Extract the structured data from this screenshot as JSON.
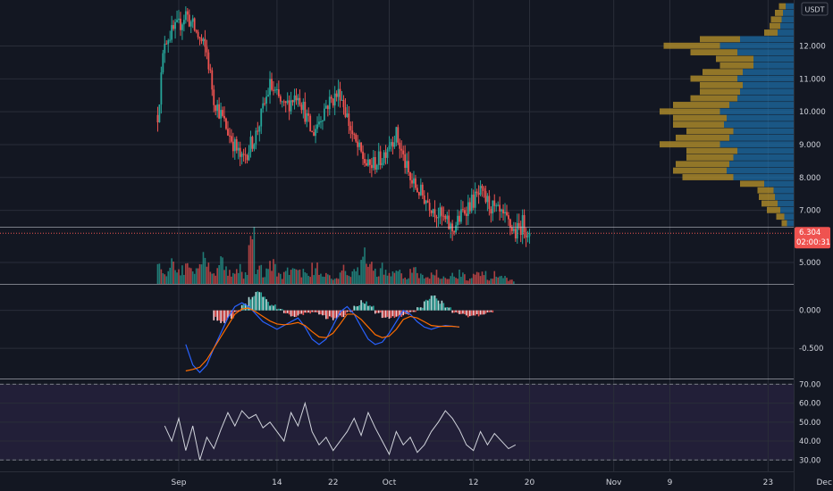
{
  "header": {
    "currency": "USDT"
  },
  "colors": {
    "background": "#131722",
    "grid": "#2a2e39",
    "up": "#26a69a",
    "down": "#ef5350",
    "macd_line": "#2962ff",
    "signal_line": "#ff6d00",
    "rsi_line": "#d1d4dc",
    "rsi_band": "#7e57c2",
    "vp_up": "#1e6ea7",
    "vp_down": "#b38f2a",
    "axis_text": "#d1d4dc"
  },
  "price_badge": {
    "price": "6.304",
    "countdown": "02:00:31"
  },
  "chart_data": [
    {
      "type": "candlestick",
      "panel": "price",
      "ylim": [
        6.5,
        13.4
      ],
      "y_ticks": [
        "7.000",
        "8.000",
        "9.000",
        "10.000",
        "11.000",
        "12.000"
      ],
      "y_tick_values": [
        7,
        8,
        9,
        10,
        11,
        12
      ],
      "x_tick_labels": [
        "Sep",
        "14",
        "22",
        "Oct",
        "12",
        "20",
        "Nov",
        "9",
        "23",
        "Dec"
      ],
      "x_tick_values": [
        0,
        14,
        22,
        30,
        42,
        50,
        62,
        70,
        84,
        92
      ],
      "date_range": [
        "Aug 27",
        "Oct 20"
      ],
      "waypoints": [
        [
          -3,
          9.9
        ],
        [
          -2,
          12.2
        ],
        [
          0,
          12.6
        ],
        [
          1,
          13.0
        ],
        [
          3,
          12.2
        ],
        [
          4,
          11.8
        ],
        [
          5,
          10.4
        ],
        [
          7,
          9.4
        ],
        [
          9,
          8.5
        ],
        [
          11,
          9.3
        ],
        [
          13,
          10.8
        ],
        [
          15,
          10.1
        ],
        [
          17,
          10.6
        ],
        [
          19,
          9.3
        ],
        [
          21,
          10.2
        ],
        [
          23,
          10.6
        ],
        [
          25,
          9.1
        ],
        [
          27,
          8.3
        ],
        [
          29,
          8.6
        ],
        [
          30,
          9.1
        ],
        [
          31,
          9.3
        ],
        [
          32,
          8.6
        ],
        [
          33,
          7.9
        ],
        [
          35,
          7.4
        ],
        [
          37,
          6.9
        ],
        [
          39,
          6.4
        ],
        [
          41,
          7.1
        ],
        [
          43,
          7.5
        ],
        [
          45,
          7.0
        ],
        [
          47,
          6.6
        ],
        [
          48,
          6.3
        ],
        [
          49,
          6.6
        ],
        [
          50,
          6.3
        ]
      ],
      "last_price": 6.304
    },
    {
      "type": "bar",
      "panel": "volume",
      "ylim": [
        4.4,
        6.0
      ],
      "y_ticks": [
        "5.000"
      ],
      "y_tick_values": [
        5.0
      ],
      "values": [
        4.9,
        4.8,
        5.1,
        4.9,
        5.2,
        4.8,
        5.3,
        5.0,
        4.9,
        5.1,
        4.8,
        4.9,
        4.7,
        5.8,
        4.9,
        4.8,
        5.0,
        4.7,
        4.8,
        4.9,
        4.8,
        4.7,
        4.9,
        4.8,
        4.7,
        4.6,
        4.9,
        4.7,
        4.8,
        5.4,
        5.0,
        4.8,
        4.9,
        4.7,
        4.8,
        4.6,
        4.8,
        4.7,
        4.6,
        4.8,
        4.7,
        4.6,
        4.7,
        4.8,
        4.6,
        4.7,
        4.7,
        4.6,
        4.7,
        4.6,
        4.5
      ],
      "x_start": -3
    },
    {
      "type": "bar",
      "panel": "macd-histogram",
      "ylim": [
        -0.9,
        0.35
      ],
      "y_ticks": [
        "0.000",
        "-0.500"
      ],
      "y_tick_values": [
        0.0,
        -0.5
      ],
      "values": [
        -0.12,
        -0.15,
        -0.1,
        -0.02,
        0.08,
        0.18,
        0.22,
        0.16,
        0.08,
        0.02,
        -0.05,
        -0.08,
        -0.06,
        -0.04,
        -0.03,
        -0.06,
        -0.1,
        -0.12,
        -0.08,
        -0.02,
        0.06,
        0.12,
        0.06,
        -0.04,
        -0.09,
        -0.1,
        -0.09,
        -0.06,
        -0.02,
        0.04,
        0.14,
        0.18,
        0.12,
        0.04,
        -0.03,
        -0.06,
        -0.08,
        -0.07,
        -0.05,
        -0.03
      ],
      "x_start": 5
    },
    {
      "type": "line",
      "panel": "macd",
      "ylim": [
        -0.9,
        0.35
      ],
      "x_start": 1,
      "series": [
        {
          "values": [
            -0.45,
            -0.72,
            -0.82,
            -0.72,
            -0.5,
            -0.3,
            -0.1,
            0.05,
            0.1,
            0.05,
            -0.05,
            -0.15,
            -0.2,
            -0.25,
            -0.2,
            -0.15,
            -0.1,
            -0.22,
            -0.38,
            -0.45,
            -0.38,
            -0.2,
            -0.02,
            0.05,
            -0.05,
            -0.22,
            -0.38,
            -0.45,
            -0.42,
            -0.3,
            -0.15,
            0.0,
            -0.05,
            -0.15,
            -0.22,
            -0.25,
            -0.22,
            -0.2,
            -0.21,
            -0.22
          ]
        },
        {
          "values": [
            -0.8,
            -0.78,
            -0.75,
            -0.65,
            -0.5,
            -0.35,
            -0.2,
            -0.05,
            0.02,
            0.03,
            -0.02,
            -0.08,
            -0.14,
            -0.18,
            -0.19,
            -0.18,
            -0.16,
            -0.2,
            -0.28,
            -0.35,
            -0.36,
            -0.3,
            -0.18,
            -0.05,
            -0.05,
            -0.12,
            -0.22,
            -0.32,
            -0.36,
            -0.34,
            -0.25,
            -0.12,
            -0.08,
            -0.1,
            -0.15,
            -0.2,
            -0.21,
            -0.21,
            -0.21,
            -0.22
          ]
        }
      ]
    },
    {
      "type": "line",
      "panel": "rsi",
      "ylim": [
        24,
        73
      ],
      "y_ticks": [
        "30.00",
        "40.00",
        "50.00",
        "60.00",
        "70.00"
      ],
      "y_tick_values": [
        30,
        40,
        50,
        60,
        70
      ],
      "x_start": -2,
      "series": [
        {
          "values": [
            48,
            40,
            52,
            35,
            48,
            30,
            42,
            36,
            46,
            55,
            48,
            56,
            52,
            54,
            47,
            50,
            45,
            40,
            55,
            48,
            60,
            45,
            38,
            42,
            35,
            40,
            45,
            52,
            43,
            55,
            47,
            40,
            33,
            45,
            38,
            42,
            34,
            38,
            45,
            50,
            56,
            52,
            46,
            38,
            35,
            45,
            38,
            44,
            40,
            36,
            38
          ]
        }
      ]
    },
    {
      "type": "bar",
      "panel": "volume-profile",
      "orientation": "horizontal",
      "ylim": [
        6.5,
        13.4
      ],
      "price_levels": [
        6.6,
        6.8,
        7.0,
        7.2,
        7.4,
        7.6,
        7.8,
        8.0,
        8.2,
        8.4,
        8.6,
        8.8,
        9.0,
        9.2,
        9.4,
        9.6,
        9.8,
        10.0,
        10.2,
        10.4,
        10.6,
        10.8,
        11.0,
        11.2,
        11.4,
        11.6,
        11.8,
        12.0,
        12.2,
        12.4,
        12.6,
        12.8,
        13.0,
        13.2
      ],
      "up_values": [
        0.05,
        0.07,
        0.1,
        0.12,
        0.14,
        0.15,
        0.22,
        0.45,
        0.5,
        0.48,
        0.45,
        0.42,
        0.55,
        0.48,
        0.45,
        0.52,
        0.5,
        0.55,
        0.48,
        0.42,
        0.4,
        0.38,
        0.42,
        0.38,
        0.3,
        0.3,
        0.42,
        0.55,
        0.4,
        0.12,
        0.1,
        0.09,
        0.08,
        0.06
      ],
      "down_values": [
        0.04,
        0.06,
        0.1,
        0.12,
        0.12,
        0.12,
        0.18,
        0.38,
        0.4,
        0.4,
        0.35,
        0.38,
        0.45,
        0.4,
        0.35,
        0.38,
        0.4,
        0.45,
        0.42,
        0.35,
        0.3,
        0.32,
        0.35,
        0.3,
        0.25,
        0.28,
        0.35,
        0.42,
        0.3,
        0.1,
        0.08,
        0.08,
        0.06,
        0.05
      ]
    }
  ]
}
